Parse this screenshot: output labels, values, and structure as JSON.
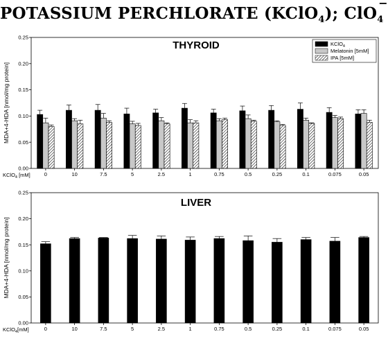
{
  "figure": {
    "title_main": "POTASSIUM PERCHLORATE (KClO",
    "title_sub": "4",
    "title_mid": "); ClO",
    "title_sub2": "4"
  },
  "chart_data": [
    {
      "type": "bar",
      "title": "THYROID",
      "ylabel": "MDA+4-HDA [nmol/mg protein]",
      "xlabel": "KClO₄ [mM]",
      "categories": [
        "0",
        "10",
        "7.5",
        "5",
        "2.5",
        "1",
        "0.75",
        "0.5",
        "0.25",
        "0.1",
        "0.075",
        "0.05"
      ],
      "ylim": [
        0,
        0.25
      ],
      "yticks": [
        "0.00",
        "0.05",
        "0.10",
        "0.15",
        "0.20",
        "0.25"
      ],
      "legend_position": "top-right",
      "series": [
        {
          "name": "KClO₄",
          "values": [
            0.103,
            0.111,
            0.111,
            0.104,
            0.106,
            0.115,
            0.106,
            0.11,
            0.111,
            0.113,
            0.107,
            0.104
          ],
          "errors": [
            0.008,
            0.01,
            0.011,
            0.011,
            0.007,
            0.009,
            0.007,
            0.009,
            0.009,
            0.012,
            0.009,
            0.008
          ],
          "fill": "#000000"
        },
        {
          "name": "Melatonin [5mM]",
          "values": [
            0.087,
            0.091,
            0.096,
            0.085,
            0.091,
            0.087,
            0.091,
            0.095,
            0.089,
            0.092,
            0.097,
            0.105
          ],
          "errors": [
            0.009,
            0.004,
            0.009,
            0.005,
            0.006,
            0.006,
            0.004,
            0.007,
            0.002,
            0.004,
            0.004,
            0.007
          ],
          "fill": "#c8c8c8"
        },
        {
          "name": "IPA [5mM]",
          "values": [
            0.08,
            0.085,
            0.088,
            0.082,
            0.085,
            0.087,
            0.093,
            0.09,
            0.082,
            0.086,
            0.095,
            0.088
          ],
          "errors": [
            0.003,
            0.007,
            0.003,
            0.004,
            0.002,
            0.004,
            0.003,
            0.002,
            0.002,
            0.001,
            0.003,
            0.004
          ],
          "fill": "hatch"
        }
      ]
    },
    {
      "type": "bar",
      "title": "LIVER",
      "ylabel": "MDA+4-HDA [nmol/mg protein]",
      "xlabel": "KClO₄[mM]",
      "categories": [
        "0",
        "10",
        "7.5",
        "5",
        "2.5",
        "1",
        "0.75",
        "0.5",
        "0.25",
        "0.1",
        "0.075",
        "0.05"
      ],
      "ylim": [
        0,
        0.25
      ],
      "yticks": [
        "0.00",
        "0.05",
        "0.10",
        "0.15",
        "0.20",
        "0.25"
      ],
      "series": [
        {
          "name": "",
          "values": [
            0.152,
            0.162,
            0.163,
            0.162,
            0.161,
            0.159,
            0.162,
            0.158,
            0.155,
            0.16,
            0.157,
            0.164
          ],
          "errors": [
            0.004,
            0.002,
            0.001,
            0.006,
            0.006,
            0.006,
            0.004,
            0.009,
            0.007,
            0.004,
            0.007,
            0.002
          ],
          "fill": "#000000"
        }
      ]
    }
  ]
}
